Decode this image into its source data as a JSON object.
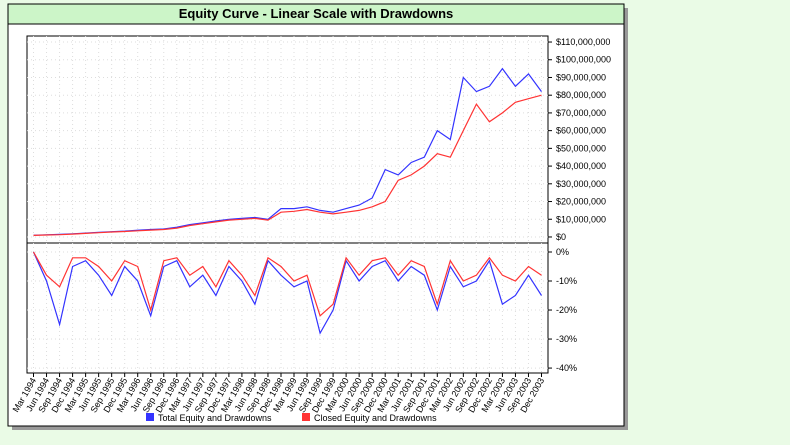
{
  "chart_data": [
    {
      "type": "line",
      "title": "Equity Curve - Linear Scale with Drawdowns",
      "categories": [
        "Mar 1994",
        "Jun 1994",
        "Sep 1994",
        "Dec 1994",
        "Mar 1995",
        "Jun 1995",
        "Sep 1995",
        "Dec 1995",
        "Mar 1996",
        "Jun 1996",
        "Sep 1996",
        "Dec 1996",
        "Mar 1997",
        "Jun 1997",
        "Sep 1997",
        "Dec 1997",
        "Mar 1998",
        "Jun 1998",
        "Sep 1998",
        "Dec 1998",
        "Mar 1999",
        "Jun 1999",
        "Sep 1999",
        "Dec 1999",
        "Mar 2000",
        "Jun 2000",
        "Sep 2000",
        "Dec 2000",
        "Mar 2001",
        "Jun 2001",
        "Sep 2001",
        "Dec 2001",
        "Mar 2002",
        "Jun 2002",
        "Sep 2002",
        "Dec 2002",
        "Mar 2003",
        "Jun 2003",
        "Sep 2003",
        "Dec 2003"
      ],
      "series": [
        {
          "name": "Total Equity and Drawdowns",
          "color": "#3333ff",
          "values": [
            1000000,
            1200000,
            1500000,
            1800000,
            2200000,
            2600000,
            3000000,
            3300000,
            3800000,
            4200000,
            4500000,
            5500000,
            7000000,
            8000000,
            9000000,
            10000000,
            10500000,
            11000000,
            10000000,
            16000000,
            16000000,
            17000000,
            15000000,
            14000000,
            16000000,
            18000000,
            22000000,
            38000000,
            35000000,
            42000000,
            45000000,
            60000000,
            55000000,
            90000000,
            82000000,
            85000000,
            95000000,
            85000000,
            92000000,
            82000000
          ]
        },
        {
          "name": "Closed Equity and Drawdowns",
          "color": "#ff3333",
          "values": [
            900000,
            1100000,
            1300000,
            1600000,
            2000000,
            2400000,
            2800000,
            3100000,
            3500000,
            3900000,
            4200000,
            5000000,
            6500000,
            7500000,
            8500000,
            9500000,
            10000000,
            10500000,
            9500000,
            14000000,
            14500000,
            15500000,
            14000000,
            13000000,
            14000000,
            15000000,
            17000000,
            20000000,
            32000000,
            35000000,
            40000000,
            47000000,
            45000000,
            60000000,
            75000000,
            65000000,
            70000000,
            76000000,
            78000000,
            80000000
          ]
        }
      ],
      "ylim": [
        -3400000,
        113400000
      ],
      "yticks": [
        {
          "value": 0,
          "label": "$0"
        },
        {
          "value": 10000000,
          "label": "$10,000,000"
        },
        {
          "value": 20000000,
          "label": "$20,000,000"
        },
        {
          "value": 30000000,
          "label": "$30,000,000"
        },
        {
          "value": 40000000,
          "label": "$40,000,000"
        },
        {
          "value": 50000000,
          "label": "$50,000,000"
        },
        {
          "value": 60000000,
          "label": "$60,000,000"
        },
        {
          "value": 70000000,
          "label": "$70,000,000"
        },
        {
          "value": 80000000,
          "label": "$80,000,000"
        },
        {
          "value": 90000000,
          "label": "$90,000,000"
        },
        {
          "value": 100000000,
          "label": "$100,000,000"
        },
        {
          "value": 110000000,
          "label": "$110,000,000"
        }
      ],
      "grid": true
    },
    {
      "type": "line",
      "series": [
        {
          "color": "#3333ff",
          "values": [
            0,
            -10,
            -25,
            -5,
            -3,
            -8,
            -15,
            -5,
            -10,
            -22,
            -5,
            -3,
            -12,
            -8,
            -15,
            -5,
            -10,
            -18,
            -3,
            -8,
            -12,
            -10,
            -28,
            -20,
            -3,
            -10,
            -5,
            -3,
            -10,
            -5,
            -8,
            -20,
            -5,
            -12,
            -10,
            -3,
            -18,
            -15,
            -8,
            -15
          ]
        },
        {
          "color": "#ff3333",
          "values": [
            0,
            -8,
            -12,
            -2,
            -2,
            -5,
            -10,
            -3,
            -5,
            -20,
            -3,
            -2,
            -8,
            -5,
            -12,
            -3,
            -8,
            -15,
            -2,
            -5,
            -10,
            -8,
            -22,
            -18,
            -2,
            -8,
            -3,
            -2,
            -8,
            -3,
            -5,
            -18,
            -3,
            -10,
            -8,
            -2,
            -8,
            -10,
            -5,
            -8
          ]
        }
      ],
      "ylim": [
        -41.7,
        3.1
      ],
      "yticks": [
        {
          "value": 0,
          "label": "0%"
        },
        {
          "value": -10,
          "label": "-10%"
        },
        {
          "value": -20,
          "label": "-20%"
        },
        {
          "value": -30,
          "label": "-30%"
        },
        {
          "value": -40,
          "label": "-40%"
        }
      ],
      "grid": true
    }
  ]
}
